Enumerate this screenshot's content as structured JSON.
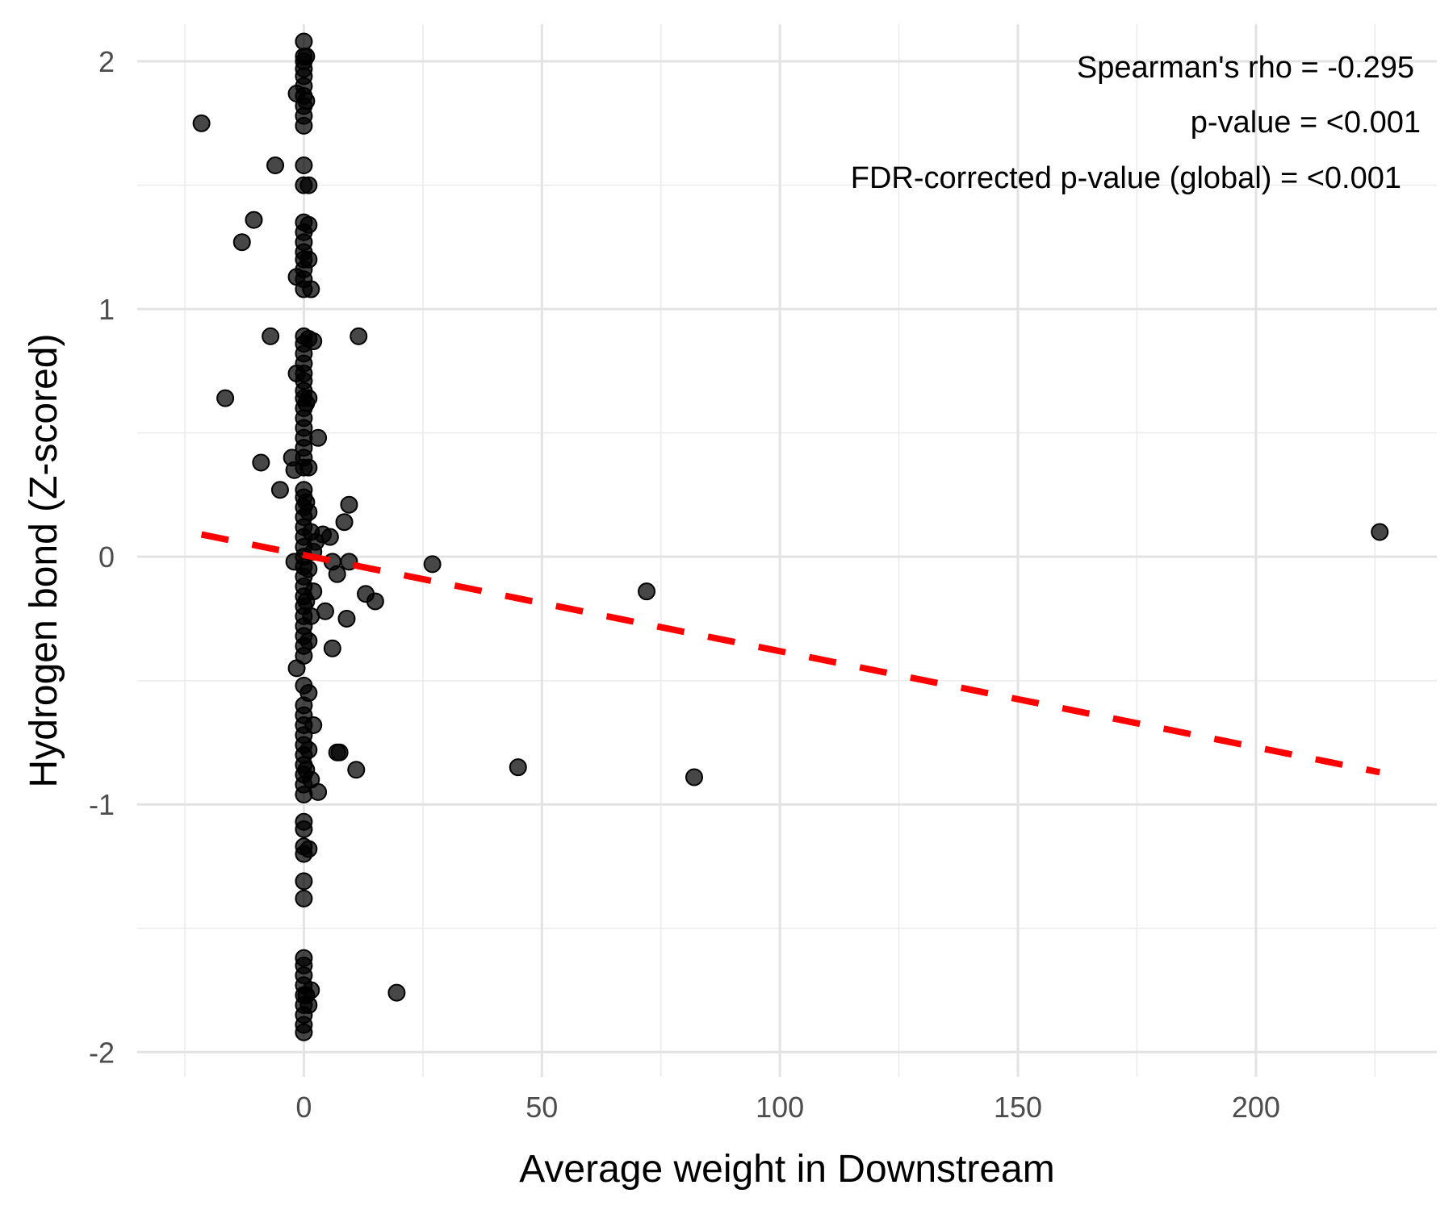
{
  "chart_data": {
    "type": "scatter",
    "title": "",
    "xlabel": "Average weight in Downstream",
    "ylabel": "Hydrogen bond (Z-scored)",
    "xlim": [
      -35,
      238
    ],
    "ylim": [
      -2.1,
      2.15
    ],
    "x_ticks": [
      0,
      50,
      100,
      150,
      200
    ],
    "y_ticks": [
      -2,
      -1,
      0,
      1,
      2
    ],
    "grid": true,
    "legend": "none",
    "annotations": [
      "Spearman's rho = -0.295",
      "p-value = <0.001",
      "FDR-corrected p-value (global) = <0.001"
    ],
    "trendline": {
      "x": [
        -21.5,
        226
      ],
      "y": [
        0.09,
        -0.87
      ],
      "style": "dashed",
      "color": "#ff0000"
    },
    "point_color": "#000000",
    "points": [
      {
        "x": -21.5,
        "y": 1.75
      },
      {
        "x": -16.5,
        "y": 0.64
      },
      {
        "x": -13,
        "y": 1.27
      },
      {
        "x": -10.5,
        "y": 1.36
      },
      {
        "x": -9,
        "y": 0.38
      },
      {
        "x": -7,
        "y": 0.89
      },
      {
        "x": -6,
        "y": 1.58
      },
      {
        "x": -5,
        "y": 0.27
      },
      {
        "x": -2.5,
        "y": 0.4
      },
      {
        "x": -2,
        "y": 0.35
      },
      {
        "x": -2,
        "y": -0.02
      },
      {
        "x": -1.5,
        "y": 0.74
      },
      {
        "x": -1.5,
        "y": 1.13
      },
      {
        "x": -1.5,
        "y": 1.87
      },
      {
        "x": -1.5,
        "y": -0.45
      },
      {
        "x": 0,
        "y": 2.08
      },
      {
        "x": 0,
        "y": 2.02
      },
      {
        "x": 0,
        "y": 2.0
      },
      {
        "x": 0,
        "y": 1.97
      },
      {
        "x": 0,
        "y": 1.94
      },
      {
        "x": 0,
        "y": 1.9
      },
      {
        "x": 0,
        "y": 1.86
      },
      {
        "x": 0,
        "y": 1.82
      },
      {
        "x": 0,
        "y": 1.78
      },
      {
        "x": 0,
        "y": 1.74
      },
      {
        "x": 0,
        "y": 1.58
      },
      {
        "x": 0,
        "y": 1.5
      },
      {
        "x": 0,
        "y": 1.35
      },
      {
        "x": 0,
        "y": 1.31
      },
      {
        "x": 0,
        "y": 1.27
      },
      {
        "x": 0,
        "y": 1.23
      },
      {
        "x": 0,
        "y": 1.2
      },
      {
        "x": 0,
        "y": 1.16
      },
      {
        "x": 0,
        "y": 1.12
      },
      {
        "x": 0,
        "y": 1.08
      },
      {
        "x": 0,
        "y": 0.89
      },
      {
        "x": 0,
        "y": 0.86
      },
      {
        "x": 0,
        "y": 0.82
      },
      {
        "x": 0,
        "y": 0.78
      },
      {
        "x": 0,
        "y": 0.74
      },
      {
        "x": 0,
        "y": 0.71
      },
      {
        "x": 0,
        "y": 0.67
      },
      {
        "x": 0,
        "y": 0.64
      },
      {
        "x": 0,
        "y": 0.6
      },
      {
        "x": 0,
        "y": 0.56
      },
      {
        "x": 0,
        "y": 0.52
      },
      {
        "x": 0,
        "y": 0.48
      },
      {
        "x": 0,
        "y": 0.44
      },
      {
        "x": 0,
        "y": 0.4
      },
      {
        "x": 0,
        "y": 0.36
      },
      {
        "x": 0,
        "y": 0.27
      },
      {
        "x": 0,
        "y": 0.24
      },
      {
        "x": 0,
        "y": 0.2
      },
      {
        "x": 0,
        "y": 0.16
      },
      {
        "x": 0,
        "y": 0.12
      },
      {
        "x": 0,
        "y": 0.08
      },
      {
        "x": 0,
        "y": 0.04
      },
      {
        "x": 0,
        "y": 0.0
      },
      {
        "x": 0,
        "y": -0.04
      },
      {
        "x": 0,
        "y": -0.08
      },
      {
        "x": 0,
        "y": -0.12
      },
      {
        "x": 0,
        "y": -0.16
      },
      {
        "x": 0,
        "y": -0.2
      },
      {
        "x": 0,
        "y": -0.24
      },
      {
        "x": 0,
        "y": -0.28
      },
      {
        "x": 0,
        "y": -0.32
      },
      {
        "x": 0,
        "y": -0.36
      },
      {
        "x": 0,
        "y": -0.4
      },
      {
        "x": 0,
        "y": -0.52
      },
      {
        "x": 0,
        "y": -0.6
      },
      {
        "x": 0,
        "y": -0.64
      },
      {
        "x": 0,
        "y": -0.68
      },
      {
        "x": 0,
        "y": -0.72
      },
      {
        "x": 0,
        "y": -0.76
      },
      {
        "x": 0,
        "y": -0.8
      },
      {
        "x": 0,
        "y": -0.84
      },
      {
        "x": 0,
        "y": -0.88
      },
      {
        "x": 0,
        "y": -0.92
      },
      {
        "x": 0,
        "y": -0.96
      },
      {
        "x": 0,
        "y": -1.07
      },
      {
        "x": 0,
        "y": -1.1
      },
      {
        "x": 0,
        "y": -1.17
      },
      {
        "x": 0,
        "y": -1.2
      },
      {
        "x": 0,
        "y": -1.31
      },
      {
        "x": 0,
        "y": -1.38
      },
      {
        "x": 0,
        "y": -1.62
      },
      {
        "x": 0,
        "y": -1.65
      },
      {
        "x": 0,
        "y": -1.69
      },
      {
        "x": 0,
        "y": -1.73
      },
      {
        "x": 0,
        "y": -1.77
      },
      {
        "x": 0,
        "y": -1.81
      },
      {
        "x": 0,
        "y": -1.85
      },
      {
        "x": 0,
        "y": -1.89
      },
      {
        "x": 0,
        "y": -1.92
      },
      {
        "x": 0.5,
        "y": 2.02
      },
      {
        "x": 0.5,
        "y": 1.84
      },
      {
        "x": 0.5,
        "y": 0.62
      },
      {
        "x": 0.5,
        "y": 0.22
      },
      {
        "x": 0.5,
        "y": -0.18
      },
      {
        "x": 0.5,
        "y": -0.86
      },
      {
        "x": 0.5,
        "y": -1.77
      },
      {
        "x": 1,
        "y": 1.5
      },
      {
        "x": 1,
        "y": 1.34
      },
      {
        "x": 1,
        "y": 1.2
      },
      {
        "x": 1,
        "y": 0.88
      },
      {
        "x": 1,
        "y": 0.64
      },
      {
        "x": 1,
        "y": 0.36
      },
      {
        "x": 1,
        "y": 0.18
      },
      {
        "x": 1,
        "y": -0.05
      },
      {
        "x": 1,
        "y": -0.34
      },
      {
        "x": 1,
        "y": -0.55
      },
      {
        "x": 1,
        "y": -0.78
      },
      {
        "x": 1,
        "y": -1.18
      },
      {
        "x": 1,
        "y": -1.81
      },
      {
        "x": 1.5,
        "y": 1.08
      },
      {
        "x": 1.5,
        "y": 0.1
      },
      {
        "x": 1.5,
        "y": -0.24
      },
      {
        "x": 1.5,
        "y": -0.9
      },
      {
        "x": 1.5,
        "y": -1.75
      },
      {
        "x": 2,
        "y": 0.87
      },
      {
        "x": 2,
        "y": 0.02
      },
      {
        "x": 2,
        "y": -0.14
      },
      {
        "x": 2,
        "y": -0.68
      },
      {
        "x": 2.5,
        "y": 0.06
      },
      {
        "x": 3,
        "y": 0.48
      },
      {
        "x": 3,
        "y": -0.95
      },
      {
        "x": 4,
        "y": 0.09
      },
      {
        "x": 4.5,
        "y": -0.22
      },
      {
        "x": 5.5,
        "y": 0.08
      },
      {
        "x": 6,
        "y": -0.02
      },
      {
        "x": 6,
        "y": -0.37
      },
      {
        "x": 7,
        "y": -0.07
      },
      {
        "x": 7,
        "y": -0.79
      },
      {
        "x": 7.5,
        "y": -0.79
      },
      {
        "x": 8.5,
        "y": 0.14
      },
      {
        "x": 9,
        "y": -0.25
      },
      {
        "x": 9.5,
        "y": 0.21
      },
      {
        "x": 9.5,
        "y": -0.02
      },
      {
        "x": 11,
        "y": -0.86
      },
      {
        "x": 11.5,
        "y": 0.89
      },
      {
        "x": 13,
        "y": -0.15
      },
      {
        "x": 15,
        "y": -0.18
      },
      {
        "x": 19.5,
        "y": -1.76
      },
      {
        "x": 27,
        "y": -0.03
      },
      {
        "x": 45,
        "y": -0.85
      },
      {
        "x": 72,
        "y": -0.14
      },
      {
        "x": 82,
        "y": -0.89
      },
      {
        "x": 226,
        "y": 0.1
      }
    ]
  }
}
